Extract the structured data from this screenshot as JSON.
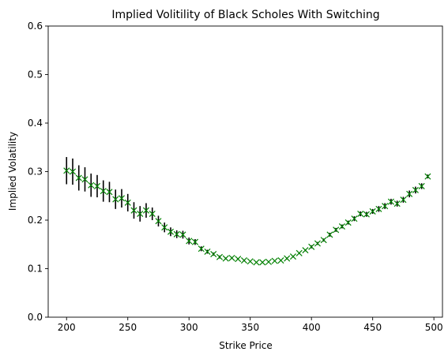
{
  "chart_data": {
    "type": "scatter",
    "title": "Implied Volitility of Black Scholes With Switching",
    "xlabel": "Strike Price",
    "ylabel": "Implied Volatility",
    "xlim": [
      185,
      507
    ],
    "ylim": [
      0.0,
      0.6
    ],
    "xticks": [
      200,
      250,
      300,
      350,
      400,
      450,
      500
    ],
    "yticks": [
      0.0,
      0.1,
      0.2,
      0.3,
      0.4,
      0.5,
      0.6
    ],
    "xtick_labels": [
      "200",
      "250",
      "300",
      "350",
      "400",
      "450",
      "500"
    ],
    "ytick_labels": [
      "0.0",
      "0.1",
      "0.2",
      "0.3",
      "0.4",
      "0.5",
      "0.6"
    ],
    "grid": false,
    "legend": false,
    "marker": "x",
    "marker_color": "#008000",
    "errorbar_color": "#000000",
    "x": [
      200,
      205,
      210,
      215,
      220,
      225,
      230,
      235,
      240,
      245,
      250,
      255,
      260,
      265,
      270,
      275,
      280,
      285,
      290,
      295,
      300,
      305,
      310,
      315,
      320,
      325,
      330,
      335,
      340,
      345,
      350,
      355,
      360,
      365,
      370,
      375,
      380,
      385,
      390,
      395,
      400,
      405,
      410,
      415,
      420,
      425,
      430,
      435,
      440,
      445,
      450,
      455,
      460,
      465,
      470,
      475,
      480,
      485,
      490,
      495
    ],
    "y": [
      0.302,
      0.3,
      0.287,
      0.284,
      0.272,
      0.27,
      0.26,
      0.258,
      0.243,
      0.245,
      0.236,
      0.22,
      0.213,
      0.22,
      0.213,
      0.198,
      0.185,
      0.176,
      0.171,
      0.17,
      0.157,
      0.155,
      0.141,
      0.135,
      0.13,
      0.124,
      0.121,
      0.122,
      0.12,
      0.117,
      0.115,
      0.113,
      0.113,
      0.114,
      0.116,
      0.117,
      0.121,
      0.125,
      0.132,
      0.138,
      0.145,
      0.152,
      0.159,
      0.17,
      0.18,
      0.187,
      0.195,
      0.203,
      0.213,
      0.212,
      0.218,
      0.223,
      0.229,
      0.238,
      0.234,
      0.242,
      0.254,
      0.262,
      0.27,
      0.29
    ],
    "err": [
      0.028,
      0.027,
      0.026,
      0.025,
      0.024,
      0.023,
      0.022,
      0.021,
      0.02,
      0.019,
      0.018,
      0.017,
      0.016,
      0.015,
      0.013,
      0.011,
      0.01,
      0.009,
      0.008,
      0.008,
      0.007,
      0.006,
      0.005,
      0.004,
      0.003,
      0.003,
      0.002,
      0.002,
      0.002,
      0.002,
      0.001,
      0.001,
      0.001,
      0.001,
      0.001,
      0.001,
      0.002,
      0.002,
      0.002,
      0.002,
      0.003,
      0.003,
      0.003,
      0.004,
      0.004,
      0.004,
      0.004,
      0.005,
      0.005,
      0.005,
      0.005,
      0.006,
      0.006,
      0.006,
      0.006,
      0.006,
      0.007,
      0.007,
      0.006,
      0.004
    ]
  }
}
